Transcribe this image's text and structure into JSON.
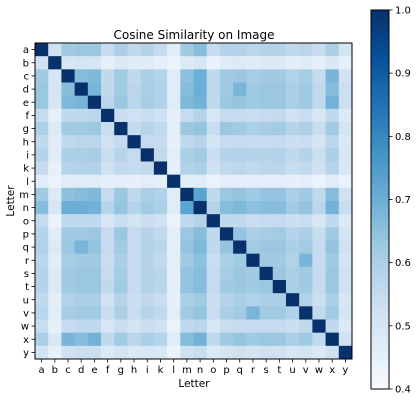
{
  "chart_data": {
    "type": "heatmap",
    "title": "Cosine Similarity on Image",
    "xlabel": "Letter",
    "ylabel": "Letter",
    "x_categories": [
      "a",
      "b",
      "c",
      "d",
      "e",
      "f",
      "g",
      "h",
      "i",
      "k",
      "l",
      "m",
      "n",
      "o",
      "p",
      "q",
      "r",
      "s",
      "t",
      "u",
      "v",
      "w",
      "x",
      "y"
    ],
    "y_categories": [
      "a",
      "b",
      "c",
      "d",
      "e",
      "f",
      "g",
      "h",
      "i",
      "k",
      "l",
      "m",
      "n",
      "o",
      "p",
      "q",
      "r",
      "s",
      "t",
      "u",
      "v",
      "w",
      "x",
      "y"
    ],
    "colormap": "Blues",
    "colorbar": {
      "range": [
        0.4,
        1.0
      ],
      "ticks": [
        "0.4",
        "0.5",
        "0.6",
        "0.7",
        "0.8",
        "0.9",
        "1.0"
      ]
    },
    "colors": {
      "low": "#f7fbff",
      "high": "#08306b"
    },
    "values": [
      [
        1.0,
        0.52,
        0.62,
        0.63,
        0.63,
        0.55,
        0.6,
        0.56,
        0.58,
        0.55,
        0.47,
        0.62,
        0.66,
        0.55,
        0.58,
        0.59,
        0.57,
        0.58,
        0.58,
        0.56,
        0.57,
        0.54,
        0.6,
        0.51
      ],
      [
        0.52,
        1.0,
        0.5,
        0.51,
        0.5,
        0.45,
        0.48,
        0.47,
        0.47,
        0.45,
        0.44,
        0.48,
        0.5,
        0.44,
        0.47,
        0.48,
        0.47,
        0.48,
        0.48,
        0.46,
        0.47,
        0.45,
        0.49,
        0.45
      ],
      [
        0.62,
        0.5,
        1.0,
        0.66,
        0.67,
        0.56,
        0.62,
        0.56,
        0.6,
        0.58,
        0.47,
        0.65,
        0.7,
        0.56,
        0.62,
        0.63,
        0.61,
        0.62,
        0.62,
        0.59,
        0.61,
        0.55,
        0.68,
        0.52
      ],
      [
        0.63,
        0.51,
        0.66,
        1.0,
        0.68,
        0.56,
        0.62,
        0.57,
        0.6,
        0.59,
        0.47,
        0.66,
        0.7,
        0.56,
        0.62,
        0.68,
        0.62,
        0.63,
        0.63,
        0.6,
        0.62,
        0.56,
        0.66,
        0.53
      ],
      [
        0.63,
        0.5,
        0.67,
        0.68,
        1.0,
        0.57,
        0.63,
        0.57,
        0.61,
        0.59,
        0.47,
        0.67,
        0.69,
        0.56,
        0.63,
        0.64,
        0.62,
        0.63,
        0.63,
        0.6,
        0.62,
        0.56,
        0.69,
        0.53
      ],
      [
        0.55,
        0.45,
        0.56,
        0.56,
        0.57,
        1.0,
        0.54,
        0.52,
        0.54,
        0.52,
        0.45,
        0.55,
        0.58,
        0.5,
        0.55,
        0.55,
        0.54,
        0.55,
        0.56,
        0.52,
        0.54,
        0.5,
        0.56,
        0.48
      ],
      [
        0.6,
        0.48,
        0.62,
        0.62,
        0.63,
        0.54,
        1.0,
        0.55,
        0.58,
        0.56,
        0.46,
        0.63,
        0.64,
        0.54,
        0.63,
        0.62,
        0.6,
        0.61,
        0.62,
        0.58,
        0.6,
        0.54,
        0.62,
        0.51
      ],
      [
        0.56,
        0.47,
        0.56,
        0.57,
        0.57,
        0.52,
        0.55,
        1.0,
        0.55,
        0.55,
        0.45,
        0.56,
        0.58,
        0.51,
        0.55,
        0.55,
        0.55,
        0.55,
        0.55,
        0.53,
        0.54,
        0.51,
        0.57,
        0.49
      ],
      [
        0.58,
        0.47,
        0.6,
        0.6,
        0.61,
        0.54,
        0.58,
        0.55,
        1.0,
        0.56,
        0.46,
        0.6,
        0.62,
        0.53,
        0.58,
        0.59,
        0.58,
        0.58,
        0.59,
        0.56,
        0.58,
        0.53,
        0.6,
        0.5
      ],
      [
        0.55,
        0.45,
        0.58,
        0.59,
        0.59,
        0.52,
        0.56,
        0.55,
        0.56,
        1.0,
        0.45,
        0.59,
        0.6,
        0.52,
        0.56,
        0.57,
        0.56,
        0.57,
        0.57,
        0.54,
        0.56,
        0.52,
        0.58,
        0.49
      ],
      [
        0.47,
        0.44,
        0.47,
        0.47,
        0.47,
        0.45,
        0.46,
        0.45,
        0.46,
        0.45,
        1.0,
        0.47,
        0.47,
        0.44,
        0.46,
        0.46,
        0.46,
        0.46,
        0.46,
        0.45,
        0.46,
        0.44,
        0.47,
        0.44
      ],
      [
        0.62,
        0.48,
        0.65,
        0.66,
        0.67,
        0.55,
        0.63,
        0.56,
        0.6,
        0.59,
        0.47,
        1.0,
        0.73,
        0.56,
        0.63,
        0.64,
        0.62,
        0.64,
        0.64,
        0.6,
        0.62,
        0.56,
        0.66,
        0.52
      ],
      [
        0.66,
        0.5,
        0.7,
        0.7,
        0.69,
        0.58,
        0.64,
        0.58,
        0.62,
        0.6,
        0.47,
        0.73,
        1.0,
        0.58,
        0.66,
        0.67,
        0.65,
        0.66,
        0.66,
        0.62,
        0.64,
        0.57,
        0.69,
        0.54
      ],
      [
        0.55,
        0.44,
        0.56,
        0.56,
        0.56,
        0.5,
        0.54,
        0.51,
        0.53,
        0.52,
        0.44,
        0.56,
        0.58,
        1.0,
        0.56,
        0.56,
        0.54,
        0.55,
        0.55,
        0.53,
        0.54,
        0.5,
        0.56,
        0.48
      ],
      [
        0.58,
        0.47,
        0.62,
        0.62,
        0.63,
        0.55,
        0.63,
        0.55,
        0.58,
        0.56,
        0.46,
        0.63,
        0.66,
        0.56,
        1.0,
        0.64,
        0.6,
        0.61,
        0.62,
        0.58,
        0.6,
        0.54,
        0.62,
        0.51
      ],
      [
        0.59,
        0.48,
        0.63,
        0.68,
        0.64,
        0.55,
        0.62,
        0.55,
        0.59,
        0.57,
        0.46,
        0.64,
        0.67,
        0.56,
        0.64,
        1.0,
        0.62,
        0.63,
        0.63,
        0.6,
        0.62,
        0.55,
        0.64,
        0.52
      ],
      [
        0.57,
        0.47,
        0.61,
        0.62,
        0.62,
        0.54,
        0.6,
        0.55,
        0.58,
        0.56,
        0.46,
        0.62,
        0.65,
        0.54,
        0.6,
        0.62,
        1.0,
        0.62,
        0.62,
        0.59,
        0.68,
        0.55,
        0.62,
        0.51
      ],
      [
        0.58,
        0.48,
        0.62,
        0.63,
        0.63,
        0.55,
        0.61,
        0.55,
        0.58,
        0.57,
        0.46,
        0.64,
        0.66,
        0.55,
        0.61,
        0.63,
        0.62,
        1.0,
        0.63,
        0.6,
        0.62,
        0.55,
        0.63,
        0.52
      ],
      [
        0.58,
        0.48,
        0.62,
        0.63,
        0.63,
        0.56,
        0.62,
        0.55,
        0.59,
        0.57,
        0.46,
        0.64,
        0.66,
        0.55,
        0.62,
        0.63,
        0.62,
        0.63,
        1.0,
        0.6,
        0.62,
        0.55,
        0.63,
        0.52
      ],
      [
        0.56,
        0.46,
        0.59,
        0.6,
        0.6,
        0.52,
        0.58,
        0.53,
        0.56,
        0.54,
        0.45,
        0.6,
        0.62,
        0.53,
        0.58,
        0.6,
        0.59,
        0.6,
        0.6,
        1.0,
        0.59,
        0.53,
        0.6,
        0.5
      ],
      [
        0.57,
        0.47,
        0.61,
        0.62,
        0.62,
        0.54,
        0.6,
        0.54,
        0.58,
        0.56,
        0.46,
        0.62,
        0.64,
        0.54,
        0.6,
        0.62,
        0.68,
        0.62,
        0.62,
        0.59,
        1.0,
        0.56,
        0.62,
        0.51
      ],
      [
        0.54,
        0.45,
        0.55,
        0.56,
        0.56,
        0.5,
        0.54,
        0.51,
        0.53,
        0.52,
        0.44,
        0.56,
        0.57,
        0.5,
        0.54,
        0.55,
        0.55,
        0.55,
        0.55,
        0.53,
        0.56,
        1.0,
        0.56,
        0.48
      ],
      [
        0.6,
        0.49,
        0.68,
        0.66,
        0.69,
        0.56,
        0.62,
        0.57,
        0.6,
        0.58,
        0.47,
        0.66,
        0.69,
        0.56,
        0.62,
        0.64,
        0.62,
        0.63,
        0.63,
        0.6,
        0.62,
        0.56,
        1.0,
        0.52
      ],
      [
        0.51,
        0.45,
        0.52,
        0.53,
        0.53,
        0.48,
        0.51,
        0.49,
        0.5,
        0.49,
        0.44,
        0.52,
        0.54,
        0.48,
        0.51,
        0.52,
        0.51,
        0.52,
        0.52,
        0.5,
        0.51,
        0.48,
        0.52,
        1.0
      ]
    ]
  }
}
